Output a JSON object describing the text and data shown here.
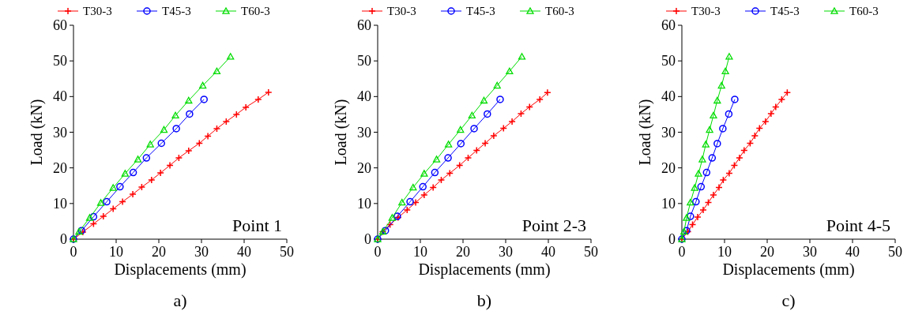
{
  "chart_data": [
    {
      "type": "line",
      "title": "a)",
      "xlabel": "Displacements (mm)",
      "ylabel": "Load (kN)",
      "annotations": [
        "Point 1"
      ],
      "xlim": [
        0,
        50
      ],
      "ylim": [
        0,
        60
      ],
      "xticks": [
        0,
        10,
        20,
        30,
        40,
        50
      ],
      "yticks": [
        0,
        10,
        20,
        30,
        40,
        50,
        60
      ],
      "grid": false,
      "legend": "top",
      "series": [
        {
          "name": "T30-3",
          "color": "#ff0000",
          "marker": "cross",
          "x": [
            0,
            2.2,
            4.7,
            7,
            9.3,
            11.5,
            13.9,
            16,
            18.3,
            20.4,
            22.6,
            24.7,
            27,
            29.5,
            31.5,
            33.6,
            35.8,
            38.2,
            40.4,
            43.3,
            45.7
          ],
          "values": [
            0,
            2,
            4.3,
            6.4,
            8.5,
            10.5,
            12.6,
            14.6,
            16.6,
            18.6,
            20.7,
            22.8,
            24.8,
            26.9,
            28.9,
            31,
            33,
            35,
            37,
            39.2,
            41.2
          ]
        },
        {
          "name": "T45-3",
          "color": "#0000ff",
          "marker": "circle",
          "x": [
            0,
            1.9,
            4.7,
            7.8,
            10.9,
            14,
            17.1,
            20.6,
            24.1,
            27.2,
            30.6
          ],
          "values": [
            0,
            2.4,
            6.3,
            10.5,
            14.7,
            18.7,
            22.8,
            26.9,
            31,
            35.1,
            39.2
          ]
        },
        {
          "name": "T60-3",
          "color": "#00dd00",
          "marker": "triangle",
          "x": [
            0,
            1.3,
            3.8,
            6.4,
            9.3,
            12.1,
            15.1,
            18,
            21.2,
            23.9,
            27,
            30.3,
            33.6,
            36.8
          ],
          "values": [
            0,
            2.1,
            6,
            10.2,
            14.4,
            18.4,
            22.4,
            26.6,
            30.7,
            34.7,
            38.9,
            43.1,
            47.1,
            51.2
          ]
        }
      ]
    },
    {
      "type": "line",
      "title": "b)",
      "xlabel": "Displacements (mm)",
      "ylabel": "Load (kN)",
      "annotations": [
        "Point 2-3"
      ],
      "xlim": [
        0,
        50
      ],
      "ylim": [
        0,
        60
      ],
      "xticks": [
        0,
        10,
        20,
        30,
        40,
        50
      ],
      "yticks": [
        0,
        10,
        20,
        30,
        40,
        50,
        60
      ],
      "grid": false,
      "legend": "top",
      "series": [
        {
          "name": "T30-3",
          "color": "#ff0000",
          "marker": "cross",
          "x": [
            0,
            1.2,
            2.9,
            4.8,
            6.9,
            8.9,
            10.9,
            13,
            14.9,
            16.9,
            19.2,
            21.2,
            23.2,
            25.2,
            27.2,
            29.5,
            31.5,
            33.6,
            35.6,
            38,
            39.8
          ],
          "values": [
            0,
            2.1,
            4.1,
            6.1,
            8.2,
            10.3,
            12.4,
            14.5,
            16.6,
            18.5,
            20.7,
            22.8,
            24.9,
            26.9,
            29,
            31.1,
            33,
            35.2,
            37.1,
            39.2,
            41.1
          ]
        },
        {
          "name": "T45-3",
          "color": "#0000ff",
          "marker": "circle",
          "x": [
            0,
            1.8,
            4.6,
            7.6,
            10.6,
            13.4,
            16.5,
            19.5,
            22.6,
            25.7,
            28.7
          ],
          "values": [
            0,
            2.4,
            6.4,
            10.5,
            14.7,
            18.7,
            22.8,
            26.8,
            31,
            35.1,
            39.2
          ]
        },
        {
          "name": "T60-3",
          "color": "#00dd00",
          "marker": "triangle",
          "x": [
            0,
            1.2,
            3.4,
            5.7,
            8.3,
            10.9,
            13.8,
            16.6,
            19.4,
            22.1,
            24.9,
            28,
            30.9,
            33.8
          ],
          "values": [
            0,
            2.1,
            6,
            10.3,
            14.5,
            18.4,
            22.4,
            26.6,
            30.7,
            34.7,
            38.9,
            43.1,
            47.1,
            51.2
          ]
        }
      ]
    },
    {
      "type": "line",
      "title": "c)",
      "xlabel": "Displacements (mm)",
      "ylabel": "Load (kN)",
      "annotations": [
        "Point 4-5"
      ],
      "xlim": [
        0,
        50
      ],
      "ylim": [
        0,
        60
      ],
      "xticks": [
        0,
        10,
        20,
        30,
        40,
        50
      ],
      "yticks": [
        0,
        10,
        20,
        30,
        40,
        50,
        60
      ],
      "grid": false,
      "legend": "top",
      "series": [
        {
          "name": "T30-3",
          "color": "#ff0000",
          "marker": "cross",
          "x": [
            0,
            1.4,
            2.5,
            3.7,
            5,
            6.2,
            7.4,
            8.7,
            9.7,
            11.1,
            12.3,
            13.5,
            14.6,
            16,
            17.1,
            18.2,
            19.6,
            20.9,
            22,
            23.4,
            24.7
          ],
          "values": [
            0,
            2.1,
            4.1,
            6.2,
            8.2,
            10.3,
            12.4,
            14.5,
            16.6,
            18.5,
            20.7,
            22.8,
            24.9,
            26.9,
            29,
            31.1,
            33,
            35.2,
            37.1,
            39.2,
            41.1
          ]
        },
        {
          "name": "T45-3",
          "color": "#0000ff",
          "marker": "circle",
          "x": [
            0,
            1.1,
            2,
            3.3,
            4.5,
            5.8,
            7.1,
            8.3,
            9.6,
            11,
            12.4
          ],
          "values": [
            0,
            2.4,
            6.4,
            10.5,
            14.7,
            18.7,
            22.8,
            26.8,
            31,
            35.1,
            39.2
          ]
        },
        {
          "name": "T60-3",
          "color": "#00dd00",
          "marker": "triangle",
          "x": [
            0,
            0.5,
            1.1,
            2,
            3,
            3.9,
            4.8,
            5.6,
            6.5,
            7.4,
            8.3,
            9.3,
            10.2,
            11.1
          ],
          "values": [
            0,
            2.1,
            6,
            10.3,
            14.4,
            18.4,
            22.4,
            26.6,
            30.7,
            34.7,
            38.9,
            43.1,
            47.1,
            51.2
          ]
        }
      ]
    }
  ]
}
